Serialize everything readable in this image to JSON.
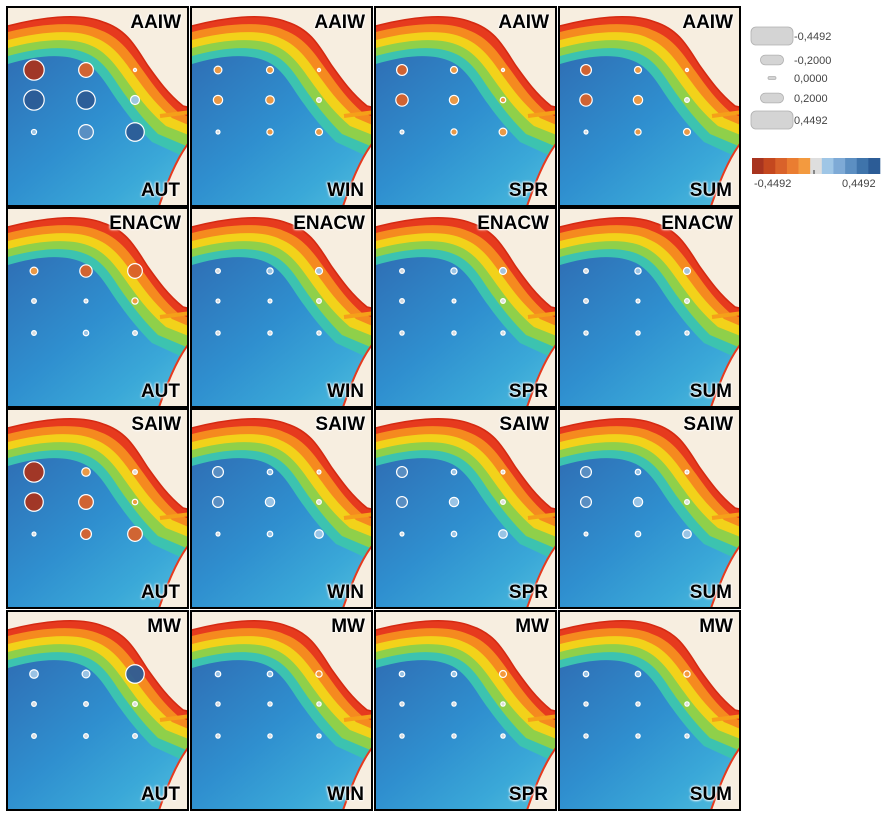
{
  "palette": {
    "neg_strong": "#a8341f",
    "neg_mid": "#d9622a",
    "neg_weak": "#f39a3f",
    "neutral": "#dedede",
    "pos_weak": "#9fc6e6",
    "pos_mid": "#5c8fc2",
    "pos_strong": "#2c5c96"
  },
  "rows": [
    {
      "water_mass": "AAIW",
      "panels": [
        {
          "season": "AUT",
          "dots": [
            -0.4492,
            -0.3,
            0,
            0.4492,
            0.4,
            0.15,
            0.05,
            0.3,
            0.4
          ]
        },
        {
          "season": "WIN",
          "dots": [
            -0.12,
            -0.1,
            0,
            -0.16,
            -0.14,
            -0.04,
            0.02,
            -0.08,
            -0.1
          ]
        },
        {
          "season": "SPR",
          "dots": [
            -0.2,
            -0.1,
            0,
            -0.24,
            -0.16,
            -0.06,
            0.02,
            -0.08,
            -0.12
          ]
        },
        {
          "season": "SUM",
          "dots": [
            -0.2,
            -0.1,
            0,
            -0.24,
            -0.16,
            -0.04,
            0.02,
            -0.08,
            -0.1
          ]
        }
      ]
    },
    {
      "water_mass": "ENACW",
      "panels": [
        {
          "season": "AUT",
          "dots": [
            -0.12,
            -0.24,
            -0.3,
            0.04,
            0.02,
            -0.08,
            0.04,
            0.06,
            0.04
          ]
        },
        {
          "season": "WIN",
          "dots": [
            0.04,
            0.08,
            0.1,
            0.02,
            0.02,
            0.04,
            0.03,
            0.03,
            0.03
          ]
        },
        {
          "season": "SPR",
          "dots": [
            0.04,
            0.08,
            0.1,
            0.04,
            0.02,
            0.04,
            0.03,
            0.03,
            0.03
          ]
        },
        {
          "season": "SUM",
          "dots": [
            0.04,
            0.08,
            0.1,
            0.04,
            0.02,
            0.04,
            0.03,
            0.03,
            0.03
          ]
        }
      ]
    },
    {
      "water_mass": "SAIW",
      "panels": [
        {
          "season": "AUT",
          "dots": [
            -0.4492,
            -0.14,
            -0.04,
            -0.4,
            -0.3,
            -0.06,
            0.02,
            -0.2,
            -0.3
          ]
        },
        {
          "season": "WIN",
          "dots": [
            0.2,
            0.06,
            0.02,
            0.2,
            0.16,
            0.04,
            0.02,
            0.06,
            0.14
          ]
        },
        {
          "season": "SPR",
          "dots": [
            0.2,
            0.06,
            0.02,
            0.2,
            0.16,
            0.04,
            0.02,
            0.06,
            0.14
          ]
        },
        {
          "season": "SUM",
          "dots": [
            0.2,
            0.06,
            0.02,
            0.2,
            0.16,
            0.04,
            0.02,
            0.06,
            0.14
          ]
        }
      ]
    },
    {
      "water_mass": "MW",
      "panels": [
        {
          "season": "AUT",
          "dots": [
            0.14,
            0.12,
            0.4,
            0.04,
            0.04,
            0.04,
            0.04,
            0.04,
            0.04
          ]
        },
        {
          "season": "WIN",
          "dots": [
            0.06,
            0.06,
            -0.08,
            0.03,
            0.03,
            0.03,
            0.03,
            0.03,
            0.03
          ]
        },
        {
          "season": "SPR",
          "dots": [
            0.06,
            0.06,
            -0.1,
            0.03,
            0.03,
            0.03,
            0.03,
            0.03,
            0.03
          ]
        },
        {
          "season": "SUM",
          "dots": [
            0.06,
            0.06,
            -0.08,
            0.03,
            0.03,
            0.03,
            0.03,
            0.03,
            0.03
          ]
        }
      ]
    }
  ],
  "legend": {
    "size_entries": [
      {
        "value": -0.4492,
        "label": "-0,4492"
      },
      {
        "value": -0.2,
        "label": "-0,2000"
      },
      {
        "value": 0,
        "label": "0,0000"
      },
      {
        "value": 0.2,
        "label": "0,2000"
      },
      {
        "value": 0.4492,
        "label": "0,4492"
      }
    ],
    "colorbar": {
      "min_label": "-0,4492",
      "max_label": "0,4492",
      "colors": [
        "#a8341f",
        "#c4481f",
        "#d9622a",
        "#ea7d31",
        "#f39a3f",
        "#dedede",
        "#9fc6e6",
        "#7eaad6",
        "#5c8fc2",
        "#3f74ab",
        "#2c5c96"
      ]
    }
  }
}
